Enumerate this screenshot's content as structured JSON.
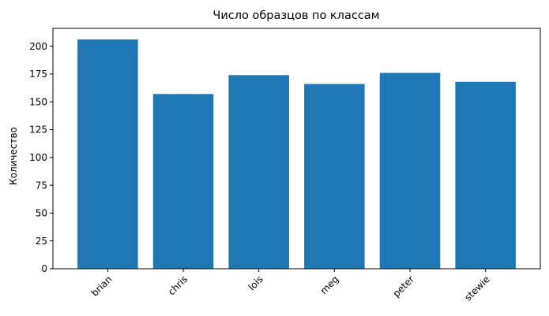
{
  "chart_data": {
    "type": "bar",
    "title": "Число образцов по классам",
    "xlabel": "",
    "ylabel": "Количество",
    "categories": [
      "brian",
      "chris",
      "lois",
      "meg",
      "peter",
      "stewie"
    ],
    "values": [
      206,
      157,
      174,
      166,
      176,
      168
    ],
    "ylim": [
      0,
      216
    ],
    "yticks": [
      "0",
      "25",
      "50",
      "75",
      "100",
      "125",
      "150",
      "175",
      "200"
    ],
    "bar_color": "#1f77b4",
    "grid": false,
    "legend": "none"
  }
}
